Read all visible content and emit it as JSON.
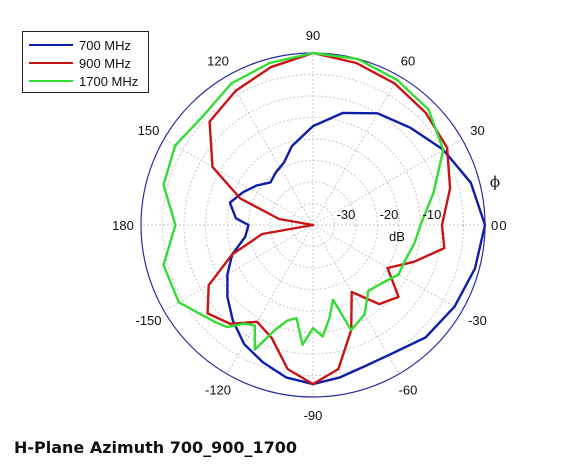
{
  "caption": "H-Plane Azimuth 700_900_1700",
  "chart_data": {
    "type": "polar",
    "theta_unit": "deg",
    "r_unit": "dB",
    "r_label": "dB",
    "theta_axis_label": "ϕ",
    "r_range": [
      -40,
      0
    ],
    "r_ticks": [
      -30,
      -20,
      -10,
      0
    ],
    "r_tick_labels": [
      "-30",
      "-20",
      "-10",
      "0"
    ],
    "theta_ticks": [
      0,
      30,
      60,
      90,
      120,
      150,
      180,
      -150,
      -120,
      -90,
      -60,
      -30
    ],
    "theta_tick_labels": [
      "0",
      "30",
      "60",
      "90",
      "120",
      "150",
      "180",
      "-150",
      "-120",
      "-90",
      "-60",
      "-30"
    ],
    "grid": true,
    "legend_position": "top-left",
    "series": [
      {
        "name": "700 MHz",
        "color": "#0c1fa6",
        "points": [
          [
            0,
            0
          ],
          [
            15,
            -2
          ],
          [
            30,
            -5
          ],
          [
            45,
            -8
          ],
          [
            60,
            -10
          ],
          [
            75,
            -13
          ],
          [
            90,
            -17
          ],
          [
            105,
            -21
          ],
          [
            115,
            -24
          ],
          [
            125,
            -25
          ],
          [
            135,
            -26
          ],
          [
            145,
            -24
          ],
          [
            155,
            -22
          ],
          [
            165,
            -20
          ],
          [
            175,
            -22
          ],
          [
            180,
            -25
          ],
          [
            190,
            -24
          ],
          [
            200,
            -20
          ],
          [
            210,
            -17
          ],
          [
            220,
            -14
          ],
          [
            230,
            -11
          ],
          [
            240,
            -8
          ],
          [
            250,
            -6
          ],
          [
            260,
            -4
          ],
          [
            270,
            -3
          ],
          [
            280,
            -4
          ],
          [
            290,
            -5
          ],
          [
            300,
            -5
          ],
          [
            315,
            -3
          ],
          [
            330,
            -2
          ],
          [
            345,
            -1
          ],
          [
            360,
            0
          ]
        ]
      },
      {
        "name": "900 MHz",
        "color": "#c81414",
        "points": [
          [
            0,
            -10
          ],
          [
            15,
            -7
          ],
          [
            30,
            -4
          ],
          [
            45,
            -3
          ],
          [
            60,
            -2
          ],
          [
            75,
            -1
          ],
          [
            90,
            0
          ],
          [
            105,
            -2
          ],
          [
            120,
            -4
          ],
          [
            135,
            -6
          ],
          [
            150,
            -13
          ],
          [
            160,
            -22
          ],
          [
            170,
            -32
          ],
          [
            180,
            -40
          ],
          [
            190,
            -28
          ],
          [
            200,
            -20
          ],
          [
            210,
            -12
          ],
          [
            220,
            -8
          ],
          [
            230,
            -10
          ],
          [
            240,
            -14
          ],
          [
            250,
            -12
          ],
          [
            260,
            -6
          ],
          [
            270,
            -3
          ],
          [
            280,
            -6
          ],
          [
            290,
            -14
          ],
          [
            300,
            -22
          ],
          [
            310,
            -16
          ],
          [
            320,
            -14
          ],
          [
            330,
            -20
          ],
          [
            340,
            -15
          ],
          [
            350,
            -9
          ],
          [
            360,
            -10
          ]
        ]
      },
      {
        "name": "1700 MHz",
        "color": "#33dd33",
        "points": [
          [
            0,
            -15
          ],
          [
            15,
            -11
          ],
          [
            30,
            -5
          ],
          [
            45,
            -2
          ],
          [
            60,
            -1
          ],
          [
            75,
            0
          ],
          [
            90,
            0
          ],
          [
            105,
            -1
          ],
          [
            120,
            -2
          ],
          [
            135,
            -4
          ],
          [
            150,
            -3
          ],
          [
            165,
            -4
          ],
          [
            180,
            -8
          ],
          [
            195,
            -4
          ],
          [
            210,
            -4
          ],
          [
            225,
            -8
          ],
          [
            230,
            -9
          ],
          [
            235,
            -12
          ],
          [
            240,
            -13
          ],
          [
            245,
            -8
          ],
          [
            250,
            -14
          ],
          [
            255,
            -17
          ],
          [
            260,
            -18
          ],
          [
            265,
            -12
          ],
          [
            270,
            -16
          ],
          [
            275,
            -14
          ],
          [
            280,
            -18
          ],
          [
            285,
            -22
          ],
          [
            290,
            -14
          ],
          [
            300,
            -16
          ],
          [
            310,
            -20
          ],
          [
            320,
            -19
          ],
          [
            330,
            -17
          ],
          [
            340,
            -17
          ],
          [
            350,
            -16
          ],
          [
            360,
            -15
          ]
        ]
      }
    ]
  }
}
